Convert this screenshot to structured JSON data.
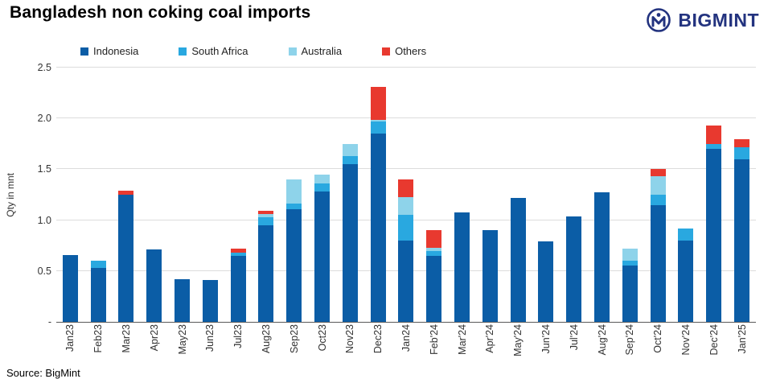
{
  "header": {
    "title": "Bangladesh non coking coal imports",
    "logo_text": "BIGMINT"
  },
  "footer": {
    "source": "Source: BigMint"
  },
  "colors": {
    "logo_navy": "#23337f",
    "gridline": "#dcdcdc",
    "axis": "#595959"
  },
  "chart_data": {
    "type": "bar",
    "stacked": true,
    "title": "Bangladesh non coking coal imports",
    "ylabel": "Qty in mnt",
    "xlabel": "",
    "ylim": [
      0,
      2.5
    ],
    "ytick_step": 0.5,
    "ytick_labels": [
      "-",
      "0.5",
      "1.0",
      "1.5",
      "2.0",
      "2.5"
    ],
    "legend_position": "top",
    "grid": true,
    "categories": [
      "Jan23",
      "Feb23",
      "Mar23",
      "Apr23",
      "May23",
      "Jun23",
      "Jul23",
      "Aug23",
      "Sep23",
      "Oct23",
      "Nov23",
      "Dec23",
      "Jan24",
      "Feb'24",
      "Mar'24",
      "Apr'24",
      "May'24",
      "Jun'24",
      "Jul'24",
      "Aug'24",
      "Sep'24",
      "Oct'24",
      "Nov'24",
      "Dec'24",
      "Jan'25"
    ],
    "series": [
      {
        "name": "Indonesia",
        "color": "#0b5da6",
        "values": [
          0.66,
          0.53,
          1.25,
          0.71,
          0.42,
          0.41,
          0.65,
          0.95,
          1.11,
          1.28,
          1.55,
          1.85,
          0.8,
          0.65,
          1.08,
          0.9,
          1.22,
          0.79,
          1.04,
          1.27,
          0.55,
          1.15,
          0.8,
          1.7,
          1.6
        ]
      },
      {
        "name": "South Africa",
        "color": "#29a8e0",
        "values": [
          0,
          0.07,
          0,
          0,
          0,
          0,
          0.03,
          0.08,
          0.05,
          0.08,
          0.08,
          0.12,
          0.25,
          0.05,
          0,
          0,
          0,
          0,
          0,
          0,
          0.05,
          0.1,
          0.12,
          0.05,
          0.12
        ]
      },
      {
        "name": "Australia",
        "color": "#8ed3ea",
        "values": [
          0,
          0,
          0,
          0,
          0,
          0,
          0,
          0.03,
          0.24,
          0.09,
          0.12,
          0.02,
          0.18,
          0.03,
          0,
          0,
          0,
          0,
          0,
          0,
          0.12,
          0.18,
          0,
          0,
          0
        ]
      },
      {
        "name": "Others",
        "color": "#e8392f",
        "values": [
          0,
          0,
          0.04,
          0,
          0,
          0,
          0.04,
          0.03,
          0,
          0,
          0,
          0.32,
          0.17,
          0.17,
          0,
          0,
          0,
          0,
          0,
          0,
          0,
          0.07,
          0,
          0.18,
          0.08
        ]
      }
    ]
  }
}
